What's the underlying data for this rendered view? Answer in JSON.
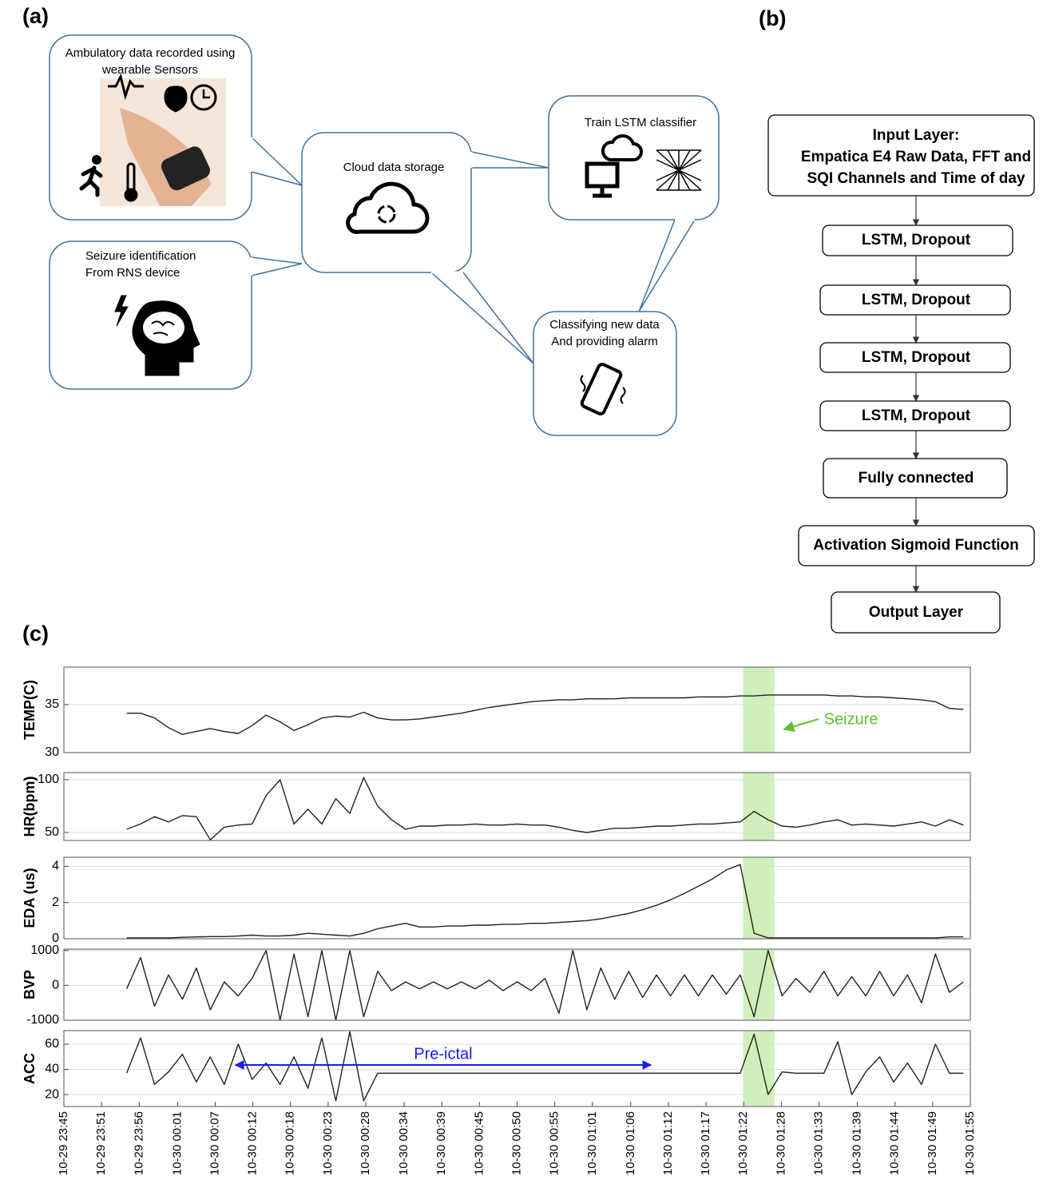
{
  "panels": {
    "a": "(a)",
    "b": "(b)",
    "c": "(c)"
  },
  "diagram": {
    "bubbles": [
      {
        "lines": [
          "Ambulatory data recorded using",
          "wearable Sensors"
        ]
      },
      {
        "lines": [
          "Cloud data storage"
        ]
      },
      {
        "lines": [
          "Train LSTM classifier"
        ]
      },
      {
        "lines": [
          "Seizure identification",
          "From RNS device"
        ]
      },
      {
        "lines": [
          "Classifying new data",
          "And providing alarm"
        ]
      }
    ]
  },
  "flowchart": {
    "nodes": [
      {
        "lines": [
          "Input Layer:",
          "Empatica E4 Raw Data, FFT and",
          "SQI Channels and Time of day"
        ]
      },
      {
        "lines": [
          "LSTM, Dropout"
        ]
      },
      {
        "lines": [
          "LSTM, Dropout"
        ]
      },
      {
        "lines": [
          "LSTM, Dropout"
        ]
      },
      {
        "lines": [
          "LSTM, Dropout"
        ]
      },
      {
        "lines": [
          "Fully connected"
        ]
      },
      {
        "lines": [
          "Activation Sigmoid Function"
        ]
      },
      {
        "lines": [
          "Output Layer"
        ]
      }
    ]
  },
  "chart_data": [
    {
      "type": "line",
      "ylabel": "TEMP(C)",
      "color": "#222222",
      "grid": true,
      "xlim": [
        -15,
        115
      ],
      "ylim": [
        30,
        38.9
      ],
      "yticks": [
        30,
        35
      ],
      "highlight": [
        82.4,
        86.9
      ],
      "highlight_color": "#c9ecb2",
      "annotation": "Seizure",
      "annotation_color": "#5ec22a",
      "x": [
        -6,
        -4,
        -2,
        0,
        2,
        4,
        6,
        8,
        10,
        12,
        14,
        16,
        18,
        20,
        22,
        24,
        26,
        28,
        30,
        32,
        34,
        36,
        38,
        40,
        42,
        44,
        46,
        48,
        50,
        52,
        54,
        56,
        58,
        60,
        62,
        64,
        66,
        68,
        70,
        72,
        74,
        76,
        78,
        80,
        82,
        84,
        86,
        88,
        90,
        92,
        94,
        96,
        98,
        100,
        102,
        104,
        106,
        108,
        110,
        112,
        114
      ],
      "values": [
        34.1,
        34.1,
        33.6,
        32.6,
        31.9,
        32.2,
        32.5,
        32.2,
        32.0,
        32.8,
        33.9,
        33.2,
        32.3,
        32.9,
        33.6,
        33.8,
        33.7,
        34.2,
        33.6,
        33.4,
        33.4,
        33.5,
        33.7,
        33.9,
        34.1,
        34.4,
        34.7,
        34.9,
        35.1,
        35.3,
        35.4,
        35.5,
        35.5,
        35.6,
        35.6,
        35.6,
        35.7,
        35.7,
        35.7,
        35.7,
        35.7,
        35.8,
        35.8,
        35.8,
        35.9,
        35.9,
        36.0,
        36.0,
        36.0,
        36.0,
        36.0,
        35.9,
        35.9,
        35.8,
        35.8,
        35.7,
        35.6,
        35.5,
        35.3,
        34.6,
        34.5
      ]
    },
    {
      "type": "line",
      "ylabel": "HR(bpm)",
      "color": "#222222",
      "grid": true,
      "xlim": [
        -15,
        115
      ],
      "ylim": [
        42.4,
        106.8
      ],
      "yticks": [
        50,
        100
      ],
      "highlight": [
        82.4,
        86.9
      ],
      "highlight_color": "#c9ecb2",
      "x": [
        -6,
        -4,
        -2,
        0,
        2,
        4,
        6,
        8,
        10,
        12,
        14,
        16,
        18,
        20,
        22,
        24,
        26,
        28,
        30,
        32,
        34,
        36,
        38,
        40,
        42,
        44,
        46,
        48,
        50,
        52,
        54,
        56,
        58,
        60,
        62,
        64,
        66,
        68,
        70,
        72,
        74,
        76,
        78,
        80,
        82,
        84,
        86,
        88,
        90,
        92,
        94,
        96,
        98,
        100,
        102,
        104,
        106,
        108,
        110,
        112,
        114
      ],
      "values": [
        53,
        58,
        65,
        60,
        66,
        65,
        43,
        55,
        57,
        58,
        85,
        100,
        58,
        72,
        58,
        82,
        68,
        102,
        75,
        62,
        53,
        56,
        56,
        57,
        57,
        58,
        57,
        57,
        58,
        57,
        57,
        55,
        52,
        50,
        52,
        54,
        54,
        55,
        56,
        56,
        57,
        58,
        58,
        59,
        60,
        70,
        62,
        56,
        55,
        57,
        60,
        62,
        57,
        58,
        57,
        56,
        58,
        60,
        56,
        62,
        57
      ]
    },
    {
      "type": "line",
      "ylabel": "EDA (us)",
      "color": "#222222",
      "grid": true,
      "xlim": [
        -15,
        115
      ],
      "ylim": [
        0,
        4.5
      ],
      "yticks": [
        0,
        2,
        4
      ],
      "highlight": [
        82.4,
        86.9
      ],
      "highlight_color": "#c9ecb2",
      "x": [
        -6,
        -4,
        -2,
        0,
        2,
        4,
        6,
        8,
        10,
        12,
        14,
        16,
        18,
        20,
        22,
        24,
        26,
        28,
        30,
        32,
        34,
        36,
        38,
        40,
        42,
        44,
        46,
        48,
        50,
        52,
        54,
        56,
        58,
        60,
        62,
        64,
        66,
        68,
        70,
        72,
        74,
        76,
        78,
        80,
        82,
        84,
        86,
        88,
        90,
        92,
        94,
        96,
        98,
        100,
        102,
        104,
        106,
        108,
        110,
        112,
        114
      ],
      "values": [
        0.05,
        0.05,
        0.05,
        0.05,
        0.08,
        0.1,
        0.12,
        0.12,
        0.15,
        0.2,
        0.15,
        0.15,
        0.2,
        0.3,
        0.25,
        0.2,
        0.15,
        0.3,
        0.55,
        0.7,
        0.85,
        0.65,
        0.65,
        0.7,
        0.7,
        0.75,
        0.75,
        0.8,
        0.8,
        0.85,
        0.85,
        0.9,
        0.95,
        1.0,
        1.1,
        1.25,
        1.4,
        1.6,
        1.85,
        2.15,
        2.5,
        2.9,
        3.3,
        3.8,
        4.1,
        0.3,
        0.05,
        0.05,
        0.05,
        0.05,
        0.05,
        0.05,
        0.05,
        0.05,
        0.05,
        0.05,
        0.05,
        0.05,
        0.05,
        0.1,
        0.1
      ]
    },
    {
      "type": "line",
      "ylabel": "BVP",
      "color": "#222222",
      "grid": true,
      "xlim": [
        -15,
        115
      ],
      "ylim": [
        -1000,
        1040
      ],
      "yticks": [
        -1000,
        0,
        1000
      ],
      "highlight": [
        82.4,
        86.9
      ],
      "highlight_color": "#c9ecb2",
      "x": [
        -6,
        -4,
        -2,
        0,
        2,
        4,
        6,
        8,
        10,
        12,
        14,
        16,
        18,
        20,
        22,
        24,
        26,
        28,
        30,
        32,
        34,
        36,
        38,
        40,
        42,
        44,
        46,
        48,
        50,
        52,
        54,
        56,
        58,
        60,
        62,
        64,
        66,
        68,
        70,
        72,
        74,
        76,
        78,
        80,
        82,
        84,
        86,
        88,
        90,
        92,
        94,
        96,
        98,
        100,
        102,
        104,
        106,
        108,
        110,
        112,
        114
      ],
      "values": [
        -100,
        800,
        -600,
        300,
        -400,
        500,
        -700,
        100,
        -300,
        200,
        1000,
        -1000,
        900,
        -900,
        1000,
        -1000,
        1000,
        -900,
        400,
        -150,
        100,
        -100,
        100,
        -100,
        100,
        -100,
        150,
        -150,
        100,
        -150,
        200,
        -800,
        1000,
        -700,
        500,
        -400,
        400,
        -350,
        300,
        -300,
        300,
        -300,
        300,
        -250,
        300,
        -900,
        1000,
        -300,
        200,
        -200,
        400,
        -300,
        250,
        -300,
        400,
        -300,
        300,
        -500,
        900,
        -200,
        100
      ]
    },
    {
      "type": "line",
      "ylabel": "ACC",
      "color": "#222222",
      "grid": true,
      "xlim": [
        -15,
        115
      ],
      "ylim": [
        10.5,
        70.8
      ],
      "yticks": [
        20,
        40,
        60
      ],
      "highlight": [
        82.4,
        86.9
      ],
      "highlight_color": "#c9ecb2",
      "annotation": "Pre-ictal",
      "annotation_color": "#1a1aff",
      "span": [
        9.6,
        69.2
      ],
      "xticks": [
        {
          "value": -15,
          "label": "10-29 23:45"
        },
        {
          "value": -9.6,
          "label": "10-29 23:51"
        },
        {
          "value": -4.2,
          "label": "10-29 23:56"
        },
        {
          "value": 1.3,
          "label": "10-30 00:01"
        },
        {
          "value": 6.7,
          "label": "10-30 00:07"
        },
        {
          "value": 12.1,
          "label": "10-30 00:12"
        },
        {
          "value": 17.5,
          "label": "10-30 00:18"
        },
        {
          "value": 22.9,
          "label": "10-30 00:23"
        },
        {
          "value": 28.3,
          "label": "10-30 00:28"
        },
        {
          "value": 33.8,
          "label": "10-30 00:34"
        },
        {
          "value": 39.2,
          "label": "10-30 00:39"
        },
        {
          "value": 44.6,
          "label": "10-30 00:45"
        },
        {
          "value": 50,
          "label": "10-30 00:50"
        },
        {
          "value": 55.4,
          "label": "10-30 00:55"
        },
        {
          "value": 60.8,
          "label": "10-30 01:01"
        },
        {
          "value": 66.3,
          "label": "10-30 01:06"
        },
        {
          "value": 71.7,
          "label": "10-30 01:12"
        },
        {
          "value": 77.1,
          "label": "10-30 01:17"
        },
        {
          "value": 82.5,
          "label": "10-30 01:22"
        },
        {
          "value": 87.9,
          "label": "10-30 01:28"
        },
        {
          "value": 93.3,
          "label": "10-30 01:33"
        },
        {
          "value": 98.8,
          "label": "10-30 01:39"
        },
        {
          "value": 104.2,
          "label": "10-30 01:44"
        },
        {
          "value": 109.6,
          "label": "10-30 01:49"
        },
        {
          "value": 115,
          "label": "10-30 01:55"
        }
      ],
      "x": [
        -6,
        -4,
        -2,
        0,
        2,
        4,
        6,
        8,
        10,
        12,
        14,
        16,
        18,
        20,
        22,
        24,
        26,
        28,
        30,
        32,
        34,
        36,
        38,
        40,
        42,
        44,
        46,
        48,
        50,
        52,
        54,
        56,
        58,
        60,
        62,
        64,
        66,
        68,
        70,
        72,
        74,
        76,
        78,
        80,
        82,
        84,
        86,
        88,
        90,
        92,
        94,
        96,
        98,
        100,
        102,
        104,
        106,
        108,
        110,
        112,
        114
      ],
      "values": [
        37,
        65,
        28,
        38,
        52,
        30,
        50,
        28,
        60,
        32,
        45,
        28,
        50,
        25,
        65,
        15,
        70,
        15,
        37,
        37,
        37,
        37,
        37,
        37,
        37,
        37,
        37,
        37,
        37,
        37,
        37,
        37,
        37,
        37,
        37,
        37,
        37,
        37,
        37,
        37,
        37,
        37,
        37,
        37,
        37,
        68,
        20,
        38,
        37,
        37,
        37,
        62,
        20,
        38,
        50,
        30,
        45,
        28,
        60,
        37,
        37
      ]
    }
  ]
}
